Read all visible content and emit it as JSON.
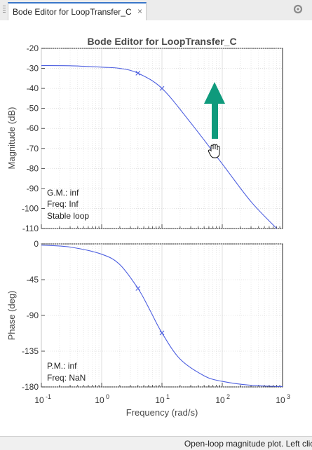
{
  "tab": {
    "label": "Bode Editor for LoopTransfer_C",
    "close_glyph": "×"
  },
  "plot": {
    "title": "Bode Editor for LoopTransfer_C",
    "magnitude_ylabel": "Magnitude (dB)",
    "phase_ylabel": "Phase (deg)",
    "xlabel": "Frequency (rad/s)",
    "gm_text": [
      "G.M.: inf",
      "Freq: Inf",
      "Stable loop"
    ],
    "pm_text": [
      "P.M.: inf",
      "Freq: NaN"
    ]
  },
  "status": {
    "text": "Open-loop magnitude plot. Left click and drag"
  },
  "colors": {
    "curve": "#4d5fe0",
    "arrow": "#0f9a7c",
    "axes": "#262626",
    "grid": "#dcdcdc",
    "tab_accent": "#3a77c9"
  },
  "icons": {
    "tab_close": "close-icon",
    "settings": "gear-icon",
    "cursor": "open-hand-cursor-icon",
    "drag_arrow": "up-arrow-icon"
  },
  "chart_data": [
    {
      "type": "line",
      "title": "Bode Editor for LoopTransfer_C",
      "xlabel": "",
      "ylabel": "Magnitude (dB)",
      "xscale": "log",
      "xlim": [
        0.1,
        1000
      ],
      "ylim": [
        -110,
        -20
      ],
      "yticks": [
        -20,
        -30,
        -40,
        -50,
        -60,
        -70,
        -80,
        -90,
        -100,
        -110
      ],
      "grid": true,
      "series": [
        {
          "x": [
            0.1,
            0.3,
            1,
            2,
            4,
            10,
            30,
            100,
            300,
            800
          ],
          "y": [
            -28.6,
            -28.7,
            -29.4,
            -30.0,
            -32.4,
            -40.0,
            -57.2,
            -77.7,
            -96.6,
            -110.0
          ]
        }
      ],
      "markers": [
        {
          "x": 4,
          "y": -32.4
        },
        {
          "x": 10,
          "y": -40.0
        }
      ]
    },
    {
      "type": "line",
      "xlabel": "Frequency (rad/s)",
      "ylabel": "Phase (deg)",
      "xscale": "log",
      "xlim": [
        0.1,
        1000
      ],
      "ylim": [
        -180,
        0
      ],
      "yticks": [
        0,
        -45,
        -90,
        -135,
        -180
      ],
      "xticks": [
        "10^-1",
        "10^0",
        "10^1",
        "10^2",
        "10^3"
      ],
      "grid": true,
      "series": [
        {
          "x": [
            0.1,
            0.3,
            1,
            2,
            4,
            6,
            10,
            20,
            50,
            100,
            300,
            1000
          ],
          "y": [
            -1.5,
            -4.0,
            -13.0,
            -26.0,
            -56.0,
            -80.0,
            -112.0,
            -145.0,
            -166.0,
            -173.0,
            -178.0,
            -179.5
          ]
        }
      ],
      "markers": [
        {
          "x": 4,
          "y": -56.0
        },
        {
          "x": 10,
          "y": -112.0
        }
      ]
    }
  ]
}
